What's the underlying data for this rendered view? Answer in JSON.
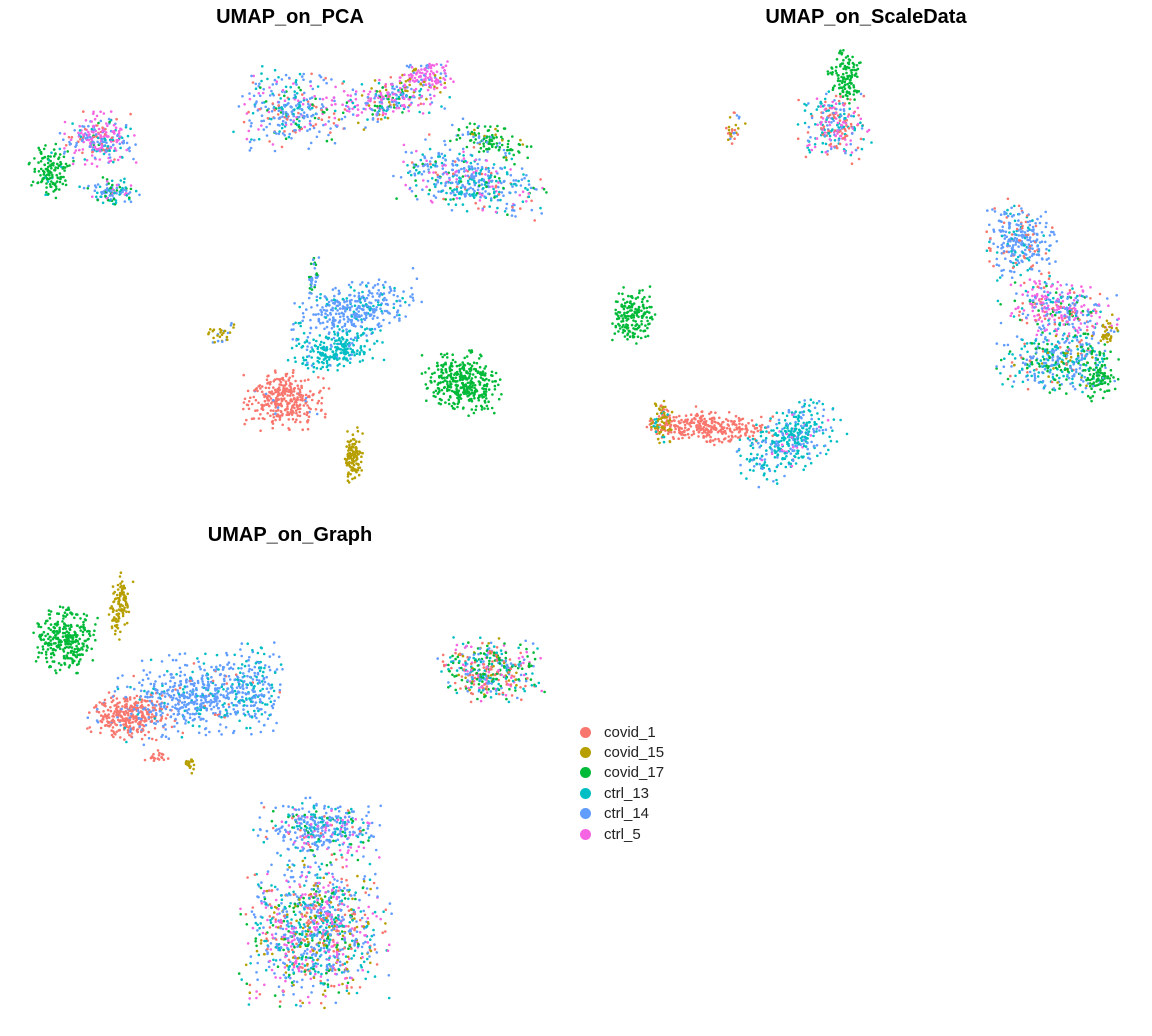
{
  "panels": [
    {
      "title": "UMAP_on_PCA"
    },
    {
      "title": "UMAP_on_ScaleData"
    },
    {
      "title": "UMAP_on_Graph"
    }
  ],
  "legend": [
    {
      "label": "covid_1",
      "color": "#F8766D"
    },
    {
      "label": "covid_15",
      "color": "#B79F00"
    },
    {
      "label": "covid_17",
      "color": "#00BA38"
    },
    {
      "label": "ctrl_13",
      "color": "#00BFC4"
    },
    {
      "label": "ctrl_14",
      "color": "#619CFF"
    },
    {
      "label": "ctrl_5",
      "color": "#F564E3"
    }
  ],
  "chart_data": [
    {
      "type": "scatter",
      "title": "UMAP_on_PCA",
      "xlabel": "",
      "ylabel": "",
      "axes_visible": false,
      "series": [
        {
          "name": "covid_1",
          "points": "cluster near lower-centre of panel; small groups in upper clusters"
        },
        {
          "name": "covid_15",
          "points": "small elongated cluster at bottom-centre; scattered in upper arc"
        },
        {
          "name": "covid_17",
          "points": "round cluster on the right; left edge of upper-left cluster; end of upper arc"
        },
        {
          "name": "ctrl_13",
          "points": "lower half of central cluster; right part of upper arc"
        },
        {
          "name": "ctrl_14",
          "points": "upper half of central cluster; throughout upper arc"
        },
        {
          "name": "ctrl_5",
          "points": "mixed into upper-left cluster and upper arc"
        }
      ]
    },
    {
      "type": "scatter",
      "title": "UMAP_on_ScaleData",
      "xlabel": "",
      "ylabel": "",
      "axes_visible": false,
      "series": [
        {
          "name": "covid_1",
          "points": "elongated band bottom-centre"
        },
        {
          "name": "covid_15",
          "points": "left tip of bottom band; edges of right elongated cluster"
        },
        {
          "name": "covid_17",
          "points": "round cluster on the left; top of upper cluster; right side of long cluster"
        },
        {
          "name": "ctrl_13",
          "points": "lower part of bottom-right cluster; lower part of long cluster"
        },
        {
          "name": "ctrl_14",
          "points": "long vertical cluster on the right; bottom-right cluster"
        },
        {
          "name": "ctrl_5",
          "points": "middle of long cluster; upper cluster"
        }
      ]
    },
    {
      "type": "scatter",
      "title": "UMAP_on_Graph",
      "xlabel": "",
      "ylabel": "",
      "axes_visible": false,
      "series": [
        {
          "name": "covid_1",
          "points": "left part of large left cluster"
        },
        {
          "name": "covid_15",
          "points": "thin vertical cluster upper-left; small speck below main cluster"
        },
        {
          "name": "covid_17",
          "points": "round cluster top-left; rim of right cluster and bottom cluster"
        },
        {
          "name": "ctrl_13",
          "points": "mixed in left and bottom clusters"
        },
        {
          "name": "ctrl_14",
          "points": "large left cluster body; bottom mushroom cluster"
        },
        {
          "name": "ctrl_5",
          "points": "bottom mushroom cluster; right cluster"
        }
      ]
    }
  ]
}
